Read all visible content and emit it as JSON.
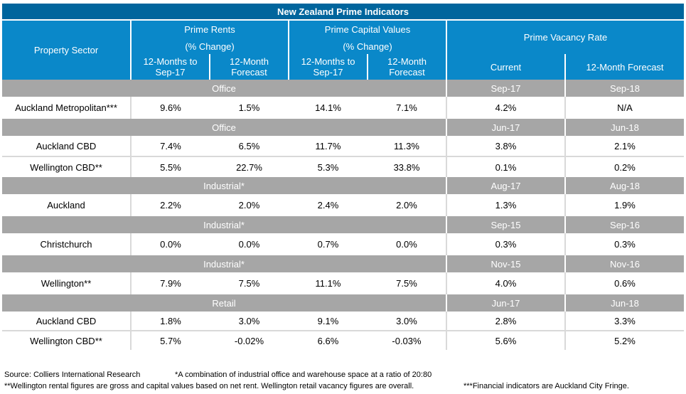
{
  "title": "New Zealand Prime Indicators",
  "header": {
    "property_sector": "Property Sector",
    "prime_rents": "Prime Rents",
    "prime_rents_change": "(% Change)",
    "prime_capital_values": "Prime Capital Values",
    "prime_capital_values_change": "(% Change)",
    "prime_vacancy_rate": "Prime Vacancy Rate",
    "rents_12m_line1": "12-Months to",
    "rents_12m_line2": "Sep-17",
    "rents_fc_line1": "12-Month",
    "rents_fc_line2": "Forecast",
    "cap_12m_line1": "12-Months to",
    "cap_12m_line2": "Sep-17",
    "cap_fc_line1": "12-Month",
    "cap_fc_line2": "Forecast",
    "vac_current": "Current",
    "vac_forecast": "12-Month Forecast"
  },
  "sections": [
    {
      "label": "Office",
      "current": "Sep-17",
      "forecast": "Sep-18",
      "rows": [
        {
          "name": "Auckland Metropolitan***",
          "rents_12m": "9.6%",
          "rents_fc": "1.5%",
          "cap_12m": "14.1%",
          "cap_fc": "7.1%",
          "vac_cur": "4.2%",
          "vac_fc": "N/A"
        }
      ]
    },
    {
      "label": "Office",
      "current": "Jun-17",
      "forecast": "Jun-18",
      "rows": [
        {
          "name": "Auckland CBD",
          "rents_12m": "7.4%",
          "rents_fc": "6.5%",
          "cap_12m": "11.7%",
          "cap_fc": "11.3%",
          "vac_cur": "3.8%",
          "vac_fc": "2.1%"
        },
        {
          "name": "Wellington CBD**",
          "rents_12m": "5.5%",
          "rents_fc": "22.7%",
          "cap_12m": "5.3%",
          "cap_fc": "33.8%",
          "vac_cur": "0.1%",
          "vac_fc": "0.2%"
        }
      ]
    },
    {
      "label": "Industrial*",
      "current": "Aug-17",
      "forecast": "Aug-18",
      "rows": [
        {
          "name": "Auckland",
          "rents_12m": "2.2%",
          "rents_fc": "2.0%",
          "cap_12m": "2.4%",
          "cap_fc": "2.0%",
          "vac_cur": "1.3%",
          "vac_fc": "1.9%"
        }
      ]
    },
    {
      "label": "Industrial*",
      "current": "Sep-15",
      "forecast": "Sep-16",
      "rows": [
        {
          "name": "Christchurch",
          "rents_12m": "0.0%",
          "rents_fc": "0.0%",
          "cap_12m": "0.7%",
          "cap_fc": "0.0%",
          "vac_cur": "0.3%",
          "vac_fc": "0.3%"
        }
      ]
    },
    {
      "label": "Industrial*",
      "current": "Nov-15",
      "forecast": "Nov-16",
      "rows": [
        {
          "name": "Wellington**",
          "rents_12m": "7.9%",
          "rents_fc": "7.5%",
          "cap_12m": "11.1%",
          "cap_fc": "7.5%",
          "vac_cur": "4.0%",
          "vac_fc": "0.6%"
        }
      ]
    },
    {
      "label": "Retail",
      "current": "Jun-17",
      "forecast": "Jun-18",
      "rows": [
        {
          "name": "Auckland CBD",
          "rents_12m": "1.8%",
          "rents_fc": "3.0%",
          "cap_12m": "9.1%",
          "cap_fc": "3.0%",
          "vac_cur": "2.8%",
          "vac_fc": "3.3%"
        },
        {
          "name": "Wellington CBD**",
          "rents_12m": "5.7%",
          "rents_fc": "-0.02%",
          "cap_12m": "6.6%",
          "cap_fc": "-0.03%",
          "vac_cur": "5.6%",
          "vac_fc": "5.2%"
        }
      ]
    }
  ],
  "footnotes": {
    "source": "Source: Colliers International Research",
    "industrial_note": "*A combination of industrial office and warehouse space at a ratio of 20:80",
    "wellington_note": "**Wellington rental figures are gross and capital values based on net rent. Wellington retail vacancy figures are overall.",
    "financial_note": "***Financial indicators are Auckland City Fringe."
  }
}
